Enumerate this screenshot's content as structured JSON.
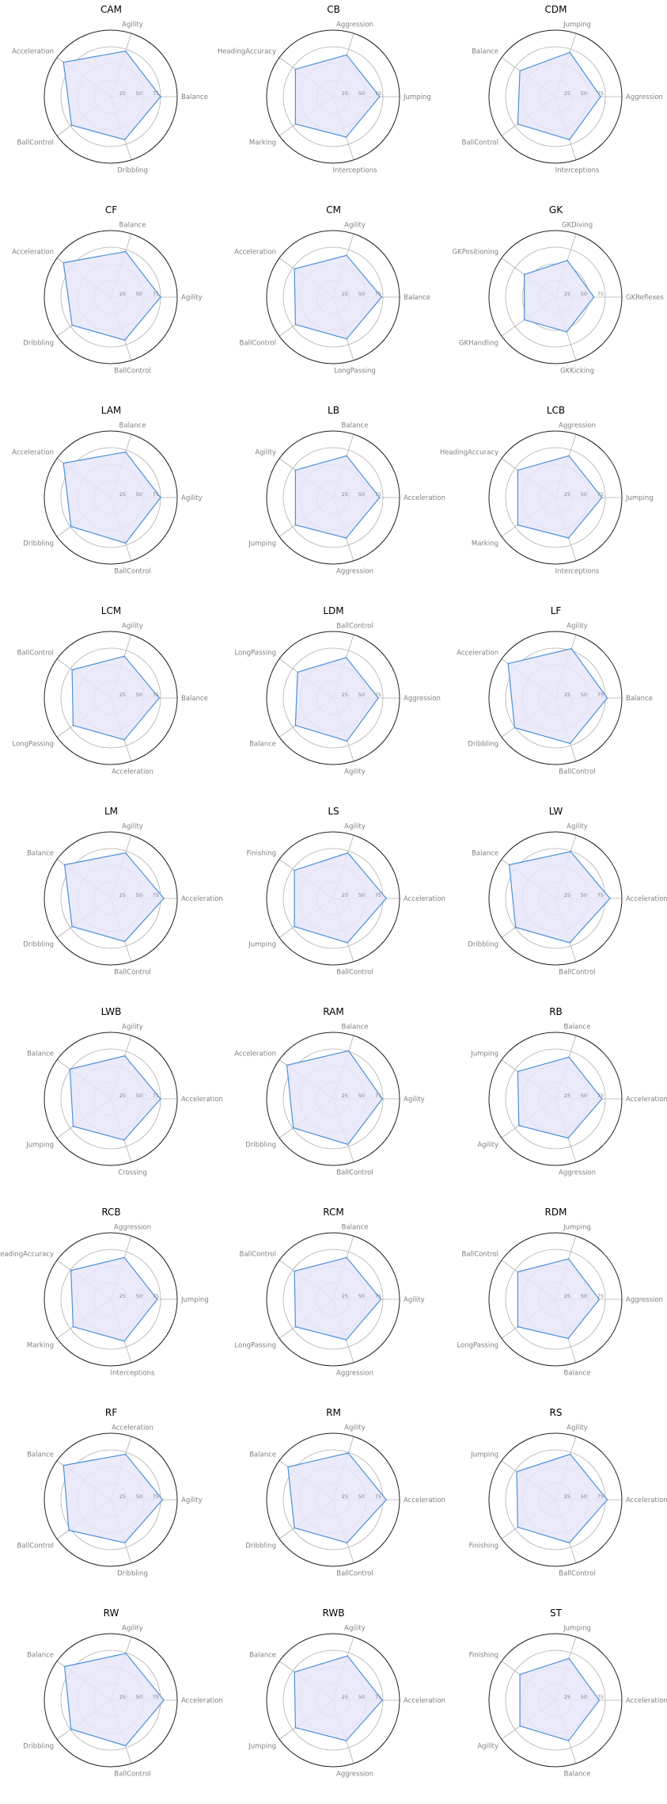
{
  "style": {
    "fill_color": "#e6e6fa",
    "line_color": "#4a90d9",
    "grid_color": "#b0b0b0",
    "outer_color": "#222222",
    "spoke_color": "#b0b0b0"
  },
  "chart_data": [
    {
      "type": "radar",
      "title": "CAM",
      "axes": [
        "Balance",
        "Agility",
        "Acceleration",
        "BallControl",
        "Dribbling"
      ],
      "values": [
        75,
        72,
        88,
        73,
        68
      ],
      "ticks": [
        "25",
        "50",
        "75"
      ],
      "ylim": [
        0,
        100
      ]
    },
    {
      "type": "radar",
      "title": "CB",
      "axes": [
        "Jumping",
        "Aggression",
        "HeadingAccuracy",
        "Marking",
        "Interceptions"
      ],
      "values": [
        70,
        66,
        70,
        70,
        64
      ],
      "ticks": [
        "25",
        "50",
        "75"
      ],
      "ylim": [
        0,
        100
      ]
    },
    {
      "type": "radar",
      "title": "CDM",
      "axes": [
        "Aggression",
        "Jumping",
        "Balance",
        "BallControl",
        "Interceptions"
      ],
      "values": [
        68,
        70,
        66,
        70,
        68
      ],
      "ticks": [
        "25",
        "50",
        "75"
      ],
      "ylim": [
        0,
        100
      ]
    },
    {
      "type": "radar",
      "title": "CF",
      "axes": [
        "Agility",
        "Balance",
        "Acceleration",
        "Dribbling",
        "BallControl"
      ],
      "values": [
        75,
        72,
        88,
        72,
        68
      ],
      "ticks": [
        "25",
        "50",
        "75"
      ],
      "ylim": [
        0,
        100
      ]
    },
    {
      "type": "radar",
      "title": "CM",
      "axes": [
        "Balance",
        "Agility",
        "Acceleration",
        "BallControl",
        "LongPassing"
      ],
      "values": [
        73,
        66,
        72,
        70,
        66
      ],
      "ticks": [
        "25",
        "50",
        "75"
      ],
      "ylim": [
        0,
        100
      ]
    },
    {
      "type": "radar",
      "title": "GK",
      "axes": [
        "GKReflexes",
        "GKDiving",
        "GKPositioning",
        "GKHandling",
        "GKKicking"
      ],
      "values": [
        58,
        58,
        58,
        58,
        55
      ],
      "ticks": [
        "25",
        "50",
        "75"
      ],
      "ylim": [
        0,
        100
      ]
    },
    {
      "type": "radar",
      "title": "LAM",
      "axes": [
        "Agility",
        "Balance",
        "Acceleration",
        "Dribbling",
        "BallControl"
      ],
      "values": [
        75,
        72,
        88,
        74,
        72
      ],
      "ticks": [
        "25",
        "50",
        "75"
      ],
      "ylim": [
        0,
        100
      ]
    },
    {
      "type": "radar",
      "title": "LB",
      "axes": [
        "Acceleration",
        "Balance",
        "Agility",
        "Jumping",
        "Aggression"
      ],
      "values": [
        70,
        66,
        70,
        70,
        64
      ],
      "ticks": [
        "25",
        "50",
        "75"
      ],
      "ylim": [
        0,
        100
      ]
    },
    {
      "type": "radar",
      "title": "LCB",
      "axes": [
        "Jumping",
        "Aggression",
        "HeadingAccuracy",
        "Marking",
        "Interceptions"
      ],
      "values": [
        70,
        66,
        70,
        70,
        64
      ],
      "ticks": [
        "25",
        "50",
        "75"
      ],
      "ylim": [
        0,
        100
      ]
    },
    {
      "type": "radar",
      "title": "LCM",
      "axes": [
        "Balance",
        "Agility",
        "BallControl",
        "LongPassing",
        "Acceleration"
      ],
      "values": [
        73,
        66,
        72,
        70,
        66
      ],
      "ticks": [
        "25",
        "50",
        "75"
      ],
      "ylim": [
        0,
        100
      ]
    },
    {
      "type": "radar",
      "title": "LDM",
      "axes": [
        "Aggression",
        "BallControl",
        "LongPassing",
        "Balance",
        "Agility"
      ],
      "values": [
        68,
        64,
        66,
        70,
        68
      ],
      "ticks": [
        "25",
        "50",
        "75"
      ],
      "ylim": [
        0,
        100
      ]
    },
    {
      "type": "radar",
      "title": "LF",
      "axes": [
        "Balance",
        "Agility",
        "Acceleration",
        "Dribbling",
        "BallControl"
      ],
      "values": [
        78,
        78,
        88,
        76,
        72
      ],
      "ticks": [
        "25",
        "50",
        "75"
      ],
      "ylim": [
        0,
        100
      ]
    },
    {
      "type": "radar",
      "title": "LM",
      "axes": [
        "Acceleration",
        "Agility",
        "Balance",
        "Dribbling",
        "BallControl"
      ],
      "values": [
        80,
        72,
        86,
        72,
        68
      ],
      "ticks": [
        "25",
        "50",
        "75"
      ],
      "ylim": [
        0,
        100
      ]
    },
    {
      "type": "radar",
      "title": "LS",
      "axes": [
        "Acceleration",
        "Agility",
        "Finishing",
        "Jumping",
        "BallControl"
      ],
      "values": [
        80,
        72,
        72,
        72,
        70
      ],
      "ticks": [
        "25",
        "50",
        "75"
      ],
      "ylim": [
        0,
        100
      ]
    },
    {
      "type": "radar",
      "title": "LW",
      "axes": [
        "Acceleration",
        "Agility",
        "Balance",
        "Dribbling",
        "BallControl"
      ],
      "values": [
        82,
        74,
        86,
        74,
        70
      ],
      "ticks": [
        "25",
        "50",
        "75"
      ],
      "ylim": [
        0,
        100
      ]
    },
    {
      "type": "radar",
      "title": "LWB",
      "axes": [
        "Acceleration",
        "Agility",
        "Balance",
        "Jumping",
        "Crossing"
      ],
      "values": [
        75,
        68,
        76,
        70,
        65
      ],
      "ticks": [
        "25",
        "50",
        "75"
      ],
      "ylim": [
        0,
        100
      ]
    },
    {
      "type": "radar",
      "title": "RAM",
      "axes": [
        "Agility",
        "Balance",
        "Acceleration",
        "Dribbling",
        "BallControl"
      ],
      "values": [
        74,
        76,
        86,
        74,
        72
      ],
      "ticks": [
        "25",
        "50",
        "75"
      ],
      "ylim": [
        0,
        100
      ]
    },
    {
      "type": "radar",
      "title": "RB",
      "axes": [
        "Acceleration",
        "Balance",
        "Jumping",
        "Agility",
        "Aggression"
      ],
      "values": [
        70,
        66,
        70,
        68,
        62
      ],
      "ticks": [
        "25",
        "50",
        "75"
      ],
      "ylim": [
        0,
        100
      ]
    },
    {
      "type": "radar",
      "title": "RCB",
      "axes": [
        "Jumping",
        "Aggression",
        "HeadingAccuracy",
        "Marking",
        "Interceptions"
      ],
      "values": [
        70,
        66,
        74,
        70,
        66
      ],
      "ticks": [
        "25",
        "50",
        "75"
      ],
      "ylim": [
        0,
        100
      ]
    },
    {
      "type": "radar",
      "title": "RCM",
      "axes": [
        "Agility",
        "Balance",
        "BallControl",
        "LongPassing",
        "Aggression"
      ],
      "values": [
        72,
        66,
        72,
        70,
        64
      ],
      "ticks": [
        "25",
        "50",
        "75"
      ],
      "ylim": [
        0,
        100
      ]
    },
    {
      "type": "radar",
      "title": "RDM",
      "axes": [
        "Aggression",
        "Jumping",
        "BallControl",
        "LongPassing",
        "Balance"
      ],
      "values": [
        66,
        64,
        70,
        70,
        62
      ],
      "ticks": [
        "25",
        "50",
        "75"
      ],
      "ylim": [
        0,
        100
      ]
    },
    {
      "type": "radar",
      "title": "RF",
      "axes": [
        "Agility",
        "Acceleration",
        "Balance",
        "BallControl",
        "Dribbling"
      ],
      "values": [
        78,
        72,
        88,
        78,
        68
      ],
      "ticks": [
        "25",
        "50",
        "75"
      ],
      "ylim": [
        0,
        100
      ]
    },
    {
      "type": "radar",
      "title": "RM",
      "axes": [
        "Acceleration",
        "Agility",
        "Balance",
        "Dribbling",
        "BallControl"
      ],
      "values": [
        80,
        74,
        84,
        72,
        68
      ],
      "ticks": [
        "25",
        "50",
        "75"
      ],
      "ylim": [
        0,
        100
      ]
    },
    {
      "type": "radar",
      "title": "RS",
      "axes": [
        "Acceleration",
        "Agility",
        "Jumping",
        "Finishing",
        "BallControl"
      ],
      "values": [
        78,
        72,
        72,
        70,
        68
      ],
      "ticks": [
        "25",
        "50",
        "75"
      ],
      "ylim": [
        0,
        100
      ]
    },
    {
      "type": "radar",
      "title": "RW",
      "axes": [
        "Acceleration",
        "Agility",
        "Balance",
        "Dribbling",
        "BallControl"
      ],
      "values": [
        80,
        74,
        86,
        74,
        72
      ],
      "ticks": [
        "25",
        "50",
        "75"
      ],
      "ylim": [
        0,
        100
      ]
    },
    {
      "type": "radar",
      "title": "RWB",
      "axes": [
        "Acceleration",
        "Agility",
        "Balance",
        "Jumping",
        "Aggression"
      ],
      "values": [
        74,
        70,
        72,
        70,
        64
      ],
      "ticks": [
        "25",
        "50",
        "75"
      ],
      "ylim": [
        0,
        100
      ]
    },
    {
      "type": "radar",
      "title": "ST",
      "axes": [
        "Acceleration",
        "Jumping",
        "Finishing",
        "Agility",
        "Balance"
      ],
      "values": [
        66,
        66,
        66,
        66,
        64
      ],
      "ticks": [
        "25",
        "50",
        "75"
      ],
      "ylim": [
        0,
        100
      ]
    }
  ]
}
